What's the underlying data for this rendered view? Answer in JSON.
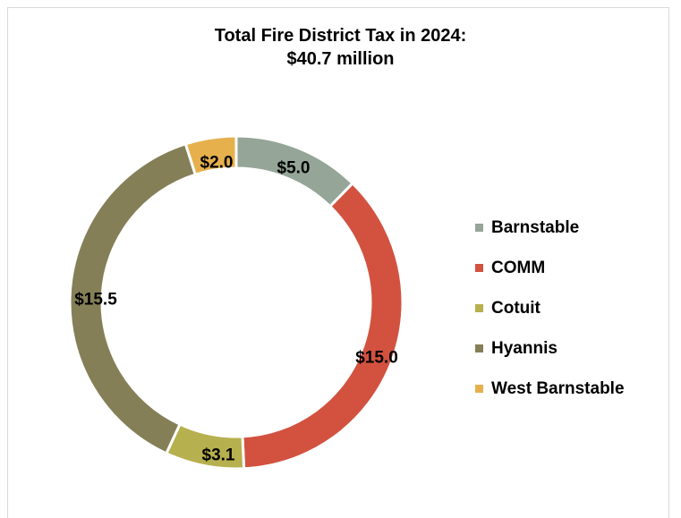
{
  "chart_data": {
    "type": "pie",
    "variant": "donut",
    "title": "Total Fire District Tax in 2024:",
    "subtitle": "$40.7 million",
    "categories": [
      "Barnstable",
      "COMM",
      "Cotuit",
      "Hyannis",
      "West Barnstable"
    ],
    "values": [
      5.0,
      15.0,
      3.1,
      15.5,
      2.0
    ],
    "data_labels": [
      "$5.0",
      "$15.0",
      "$3.1",
      "$15.5",
      "$2.0"
    ],
    "colors": [
      "#95a598",
      "#d2523f",
      "#b7b04e",
      "#857f58",
      "#e6b04d"
    ],
    "legend": "right"
  }
}
